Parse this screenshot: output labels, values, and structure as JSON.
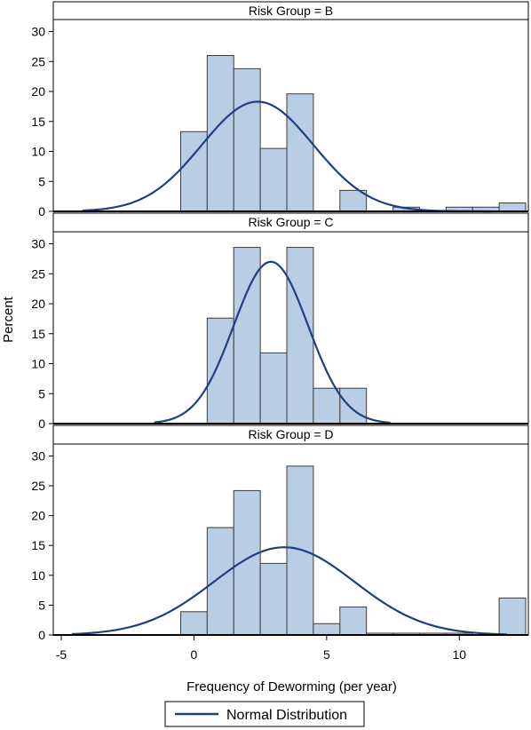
{
  "chart_data": {
    "type": "bar",
    "xlabel": "Frequency of Deworming (per year)",
    "ylabel": "Percent",
    "xlim": [
      -5.3,
      12.6
    ],
    "ylim": [
      0,
      32
    ],
    "x_ticks": [
      -5,
      0,
      5,
      10
    ],
    "y_ticks": [
      0,
      5,
      10,
      15,
      20,
      25,
      30
    ],
    "bin_width": 1,
    "colors": {
      "bar_fill": "#b9cde5",
      "bar_stroke": "#3b3b3b",
      "curve": "#1f3f80"
    },
    "legend": {
      "label": "Normal Distribution",
      "position": "bottom-center"
    },
    "panels": [
      {
        "title": "Risk Group = B",
        "bins": [
          {
            "x": 0,
            "value": 13.3
          },
          {
            "x": 1,
            "value": 26.0
          },
          {
            "x": 2,
            "value": 23.8
          },
          {
            "x": 3,
            "value": 10.5
          },
          {
            "x": 4,
            "value": 19.6
          },
          {
            "x": 6,
            "value": 3.5
          },
          {
            "x": 8,
            "value": 0.7
          },
          {
            "x": 10,
            "value": 0.7
          },
          {
            "x": 11,
            "value": 0.7
          },
          {
            "x": 12,
            "value": 1.4
          }
        ],
        "normal": {
          "mean": 2.4,
          "peak": 18.3,
          "sd": 2.1,
          "xmin": -4.2,
          "xmax": 11.2
        }
      },
      {
        "title": "Risk Group = C",
        "bins": [
          {
            "x": 1,
            "value": 17.6
          },
          {
            "x": 2,
            "value": 29.4
          },
          {
            "x": 3,
            "value": 11.8
          },
          {
            "x": 4,
            "value": 29.4
          },
          {
            "x": 5,
            "value": 5.9
          },
          {
            "x": 6,
            "value": 5.9
          }
        ],
        "normal": {
          "mean": 2.9,
          "peak": 27.0,
          "sd": 1.4,
          "xmin": -1.5,
          "xmax": 7.4
        }
      },
      {
        "title": "Risk Group = D",
        "bins": [
          {
            "x": 0,
            "value": 3.9
          },
          {
            "x": 1,
            "value": 18.0
          },
          {
            "x": 2,
            "value": 24.2
          },
          {
            "x": 3,
            "value": 12.0
          },
          {
            "x": 4,
            "value": 28.3
          },
          {
            "x": 5,
            "value": 1.9
          },
          {
            "x": 6,
            "value": 4.7
          },
          {
            "x": 7,
            "value": 0.3
          },
          {
            "x": 8,
            "value": 0.3
          },
          {
            "x": 9,
            "value": 0.3
          },
          {
            "x": 10,
            "value": 0.3
          },
          {
            "x": 12,
            "value": 6.2
          }
        ],
        "normal": {
          "mean": 3.4,
          "peak": 14.7,
          "sd": 2.65,
          "xmin": -4.6,
          "xmax": 11.8
        }
      }
    ]
  }
}
